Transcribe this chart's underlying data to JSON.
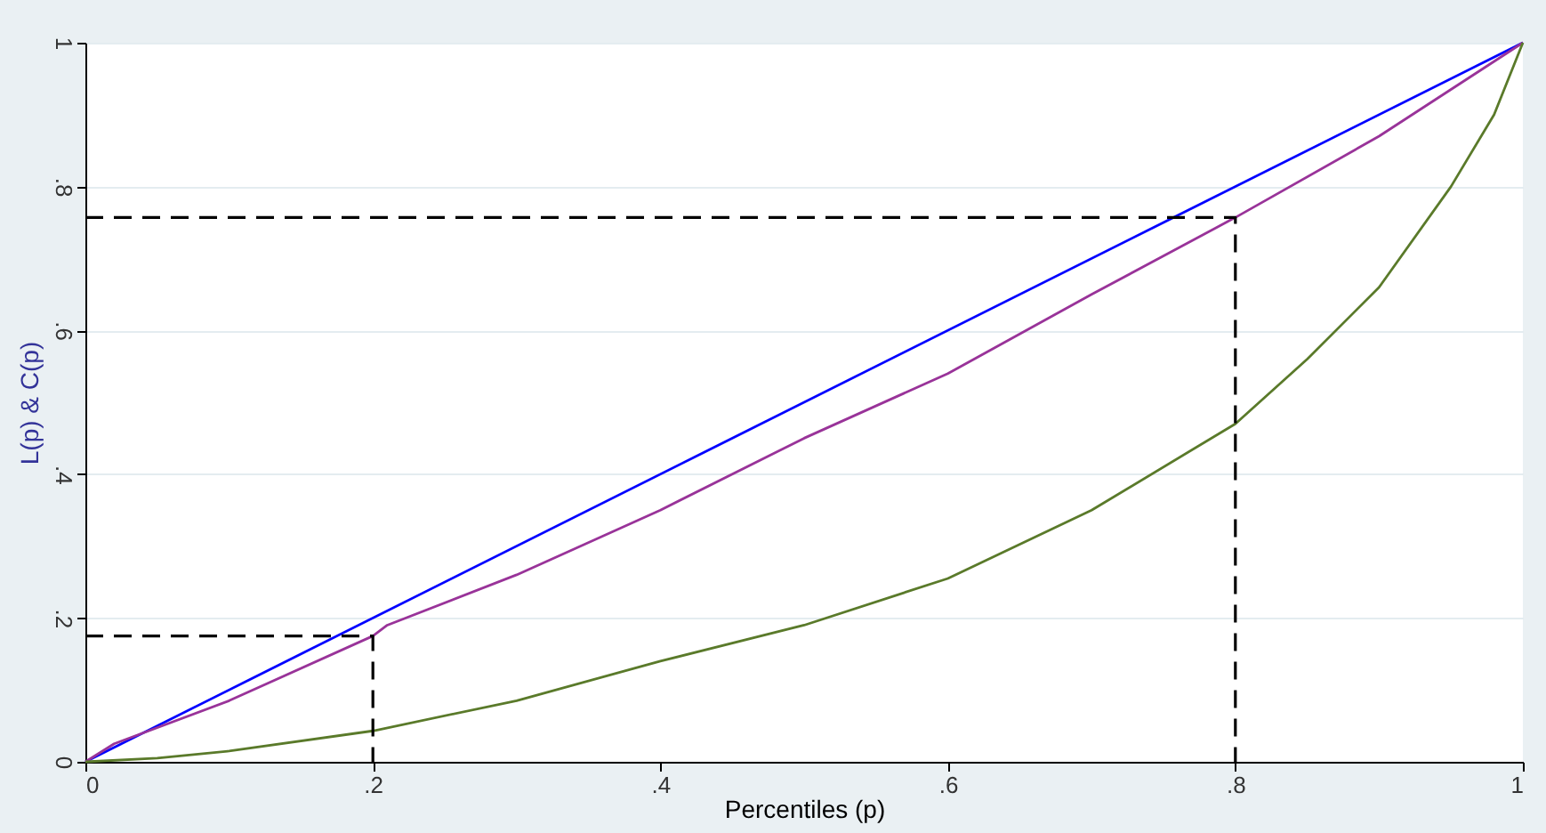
{
  "chart_data": {
    "type": "line",
    "xlabel": "Percentiles (p)",
    "ylabel": "L(p) & C(p)",
    "xlim": [
      0,
      1
    ],
    "ylim": [
      0,
      1
    ],
    "xticks": [
      0,
      {
        "value": 0.2,
        "label": ".2"
      },
      {
        "value": 0.4,
        "label": ".4"
      },
      {
        "value": 0.6,
        "label": ".6"
      },
      {
        "value": 0.8,
        "label": ".8"
      },
      1
    ],
    "yticks": [
      0,
      {
        "value": 0.2,
        "label": ".2"
      },
      {
        "value": 0.4,
        "label": ".4"
      },
      {
        "value": 0.6,
        "label": ".6"
      },
      {
        "value": 0.8,
        "label": ".8"
      },
      1
    ],
    "grid": "y",
    "series": [
      {
        "color": "#0000ff",
        "x": [
          0,
          1
        ],
        "values": [
          0,
          1
        ]
      },
      {
        "color": "#993399",
        "x": [
          0,
          0.02,
          0.1,
          0.2,
          0.21,
          0.3,
          0.4,
          0.5,
          0.6,
          0.7,
          0.8,
          0.9,
          1
        ],
        "values": [
          0,
          0.025,
          0.085,
          0.175,
          0.19,
          0.26,
          0.35,
          0.45,
          0.54,
          0.65,
          0.757,
          0.87,
          1
        ]
      },
      {
        "color": "#5a7a2a",
        "x": [
          0,
          0.05,
          0.1,
          0.2,
          0.3,
          0.4,
          0.5,
          0.6,
          0.7,
          0.8,
          0.85,
          0.9,
          0.95,
          0.98,
          1
        ],
        "values": [
          0,
          0.005,
          0.015,
          0.043,
          0.085,
          0.14,
          0.19,
          0.255,
          0.35,
          0.47,
          0.56,
          0.66,
          0.8,
          0.9,
          1
        ]
      },
      {
        "color": "#000000",
        "line_style": "dashed",
        "x": [
          0,
          0.8,
          0.8
        ],
        "values": [
          0.757,
          0.757,
          0
        ]
      },
      {
        "color": "#000000",
        "line_style": "dashed",
        "x": [
          0,
          0.2,
          0.2
        ],
        "values": [
          0.175,
          0.175,
          0
        ]
      }
    ]
  }
}
